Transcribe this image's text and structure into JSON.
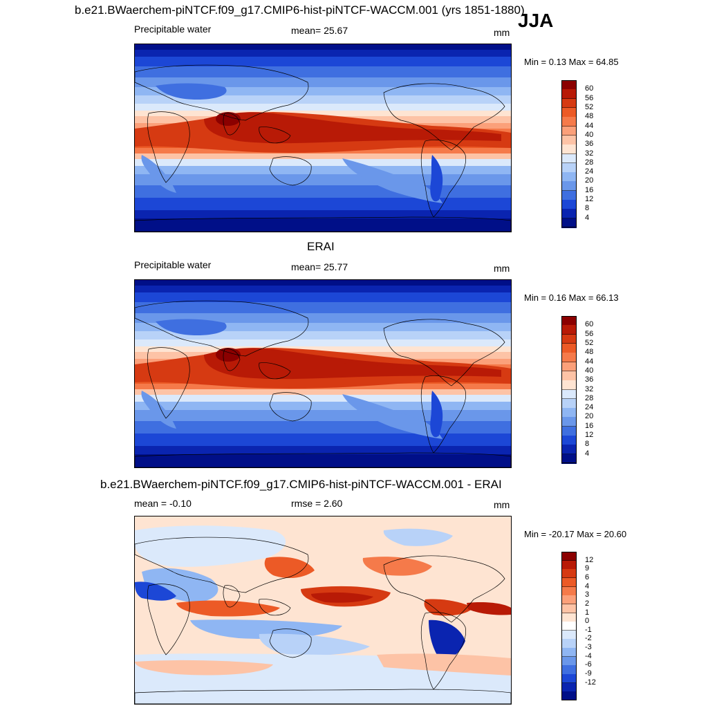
{
  "season": "JJA",
  "panels": [
    {
      "title": "b.e21.BWaerchem-piNTCF.f09_g17.CMIP6-hist-piNTCF-WACCM.001 (yrs 1851-1880)",
      "left_label": "Precipitable water",
      "center_label": "mean=  25.67",
      "units": "mm",
      "minmax": "Min =   0.13 Max =  64.85",
      "colorbar_ticks": [
        "60",
        "56",
        "52",
        "48",
        "44",
        "40",
        "36",
        "32",
        "28",
        "24",
        "20",
        "16",
        "12",
        "8",
        "4"
      ],
      "palette": [
        "#8b0000",
        "#b81a06",
        "#d63a12",
        "#ec5a26",
        "#f57a4a",
        "#fba07a",
        "#fdc3a6",
        "#fee4d2",
        "#dbe9fb",
        "#b8d2f8",
        "#8fb6f3",
        "#6a97ea",
        "#3f6fe0",
        "#1c47d6",
        "#0a24b0",
        "#000f88"
      ],
      "field": "mean"
    },
    {
      "title": "ERAI",
      "left_label": "Precipitable water",
      "center_label": "mean=  25.77",
      "units": "mm",
      "minmax": "Min =   0.16 Max =  66.13",
      "colorbar_ticks": [
        "60",
        "56",
        "52",
        "48",
        "44",
        "40",
        "36",
        "32",
        "28",
        "24",
        "20",
        "16",
        "12",
        "8",
        "4"
      ],
      "palette": [
        "#8b0000",
        "#b81a06",
        "#d63a12",
        "#ec5a26",
        "#f57a4a",
        "#fba07a",
        "#fdc3a6",
        "#fee4d2",
        "#dbe9fb",
        "#b8d2f8",
        "#8fb6f3",
        "#6a97ea",
        "#3f6fe0",
        "#1c47d6",
        "#0a24b0",
        "#000f88"
      ],
      "field": "mean"
    },
    {
      "title": "b.e21.BWaerchem-piNTCF.f09_g17.CMIP6-hist-piNTCF-WACCM.001 - ERAI",
      "left_label": "mean =  -0.10",
      "center_label": "rmse =   2.60",
      "units": "mm",
      "minmax": "Min = -20.17 Max =  20.60",
      "colorbar_ticks": [
        "12",
        "9",
        "6",
        "4",
        "3",
        "2",
        "1",
        "0",
        "-1",
        "-2",
        "-3",
        "-4",
        "-6",
        "-9",
        "-12"
      ],
      "palette": [
        "#8b0000",
        "#b81a06",
        "#d63a12",
        "#ec5a26",
        "#f57a4a",
        "#fba07a",
        "#fdc3a6",
        "#fee4d2",
        "#ffffff",
        "#dbe9fb",
        "#b8d2f8",
        "#8fb6f3",
        "#6a97ea",
        "#3f6fe0",
        "#1c47d6",
        "#0a24b0",
        "#000f88"
      ],
      "field": "diff"
    }
  ]
}
